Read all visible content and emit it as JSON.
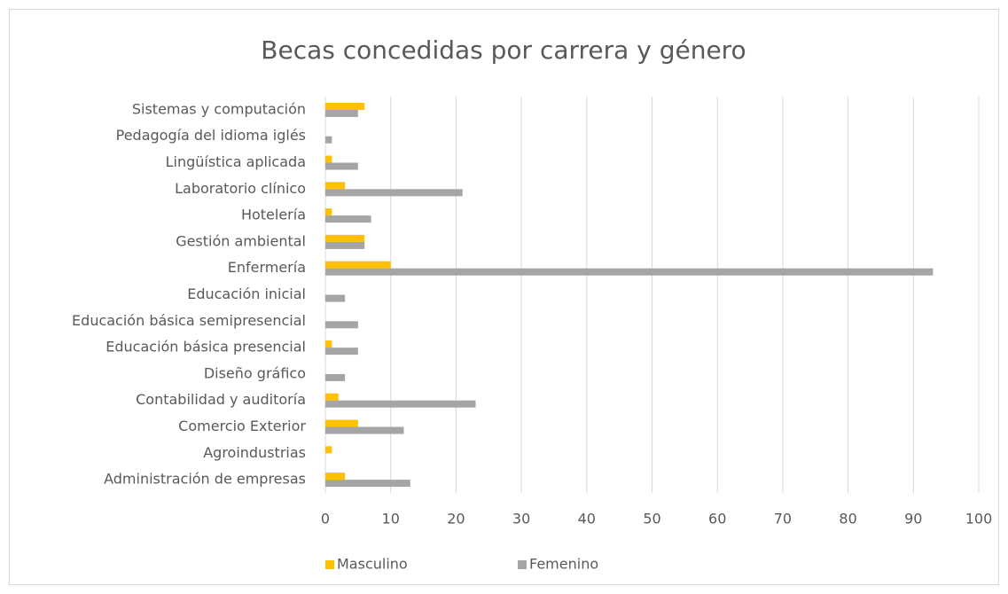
{
  "chart_data": {
    "type": "bar",
    "orientation": "horizontal",
    "title": "Becas concedidas por carrera y género",
    "categories": [
      "Administración de empresas",
      "Agroindustrias",
      "Comercio Exterior",
      "Contabilidad y auditoría",
      "Diseño gráfico",
      "Educación básica presencial",
      "Educación básica semipresencial",
      "Educación inicial",
      "Enfermería",
      "Gestión ambiental",
      "Hotelería",
      "Laboratorio clínico",
      "Lingüística aplicada",
      "Pedagogía del idioma iglés",
      "Sistemas y computación"
    ],
    "series": [
      {
        "name": "Masculino",
        "color": "#ffc000",
        "values": [
          3,
          1,
          5,
          2,
          0,
          1,
          0,
          0,
          10,
          6,
          1,
          3,
          1,
          0,
          6
        ]
      },
      {
        "name": "Femenino",
        "color": "#a5a5a5",
        "values": [
          13,
          0,
          12,
          23,
          3,
          5,
          5,
          3,
          93,
          6,
          7,
          21,
          5,
          1,
          5
        ]
      }
    ],
    "xlim": [
      0,
      100
    ],
    "xticks": [
      0,
      10,
      20,
      30,
      40,
      50,
      60,
      70,
      80,
      90,
      100
    ],
    "grid": true,
    "legend": "bottom"
  }
}
